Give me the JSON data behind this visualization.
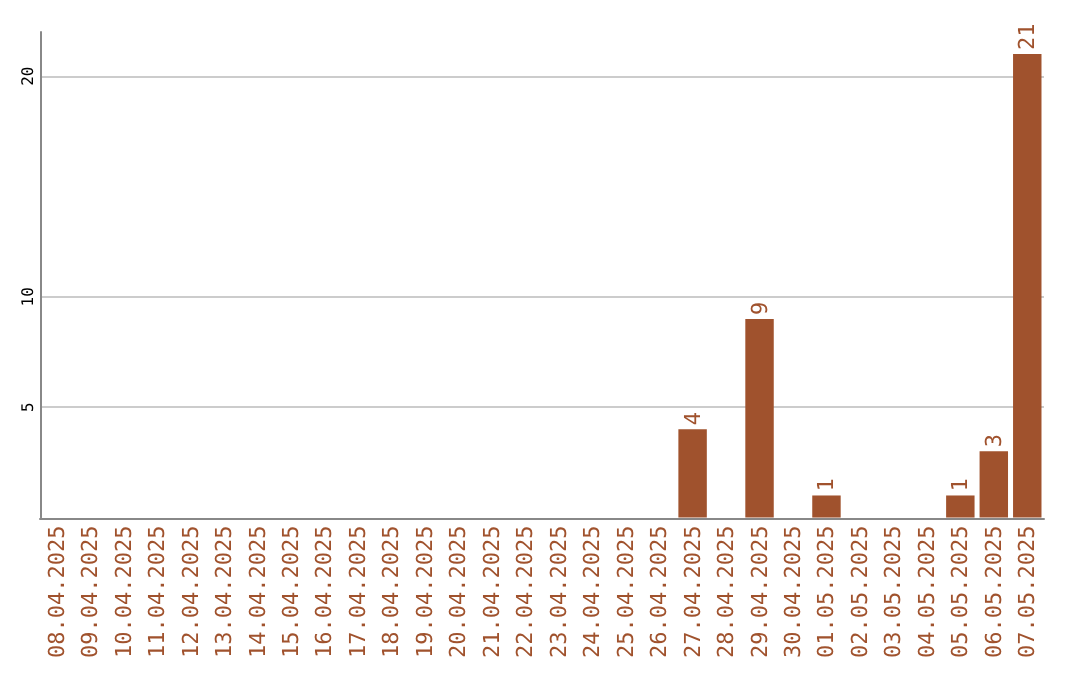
{
  "chart_data": {
    "type": "bar",
    "categories": [
      "08.04.2025",
      "09.04.2025",
      "10.04.2025",
      "11.04.2025",
      "12.04.2025",
      "13.04.2025",
      "14.04.2025",
      "15.04.2025",
      "16.04.2025",
      "17.04.2025",
      "18.04.2025",
      "19.04.2025",
      "20.04.2025",
      "21.04.2025",
      "22.04.2025",
      "23.04.2025",
      "24.04.2025",
      "25.04.2025",
      "26.04.2025",
      "27.04.2025",
      "28.04.2025",
      "29.04.2025",
      "30.04.2025",
      "01.05.2025",
      "02.05.2025",
      "03.05.2025",
      "04.05.2025",
      "05.05.2025",
      "06.05.2025",
      "07.05.2025"
    ],
    "values": [
      0,
      0,
      0,
      0,
      0,
      0,
      0,
      0,
      0,
      0,
      0,
      0,
      0,
      0,
      0,
      0,
      0,
      0,
      0,
      4,
      0,
      9,
      0,
      1,
      0,
      0,
      0,
      1,
      3,
      21
    ],
    "value_labels": [
      null,
      null,
      null,
      null,
      null,
      null,
      null,
      null,
      null,
      null,
      null,
      null,
      null,
      null,
      null,
      null,
      null,
      null,
      null,
      "4",
      null,
      "9",
      null,
      "1",
      null,
      null,
      null,
      "1",
      "3",
      "21"
    ],
    "color": "#a0522d",
    "ylim": [
      0,
      22
    ],
    "yticks": [
      5,
      10,
      20
    ],
    "grid": true
  }
}
